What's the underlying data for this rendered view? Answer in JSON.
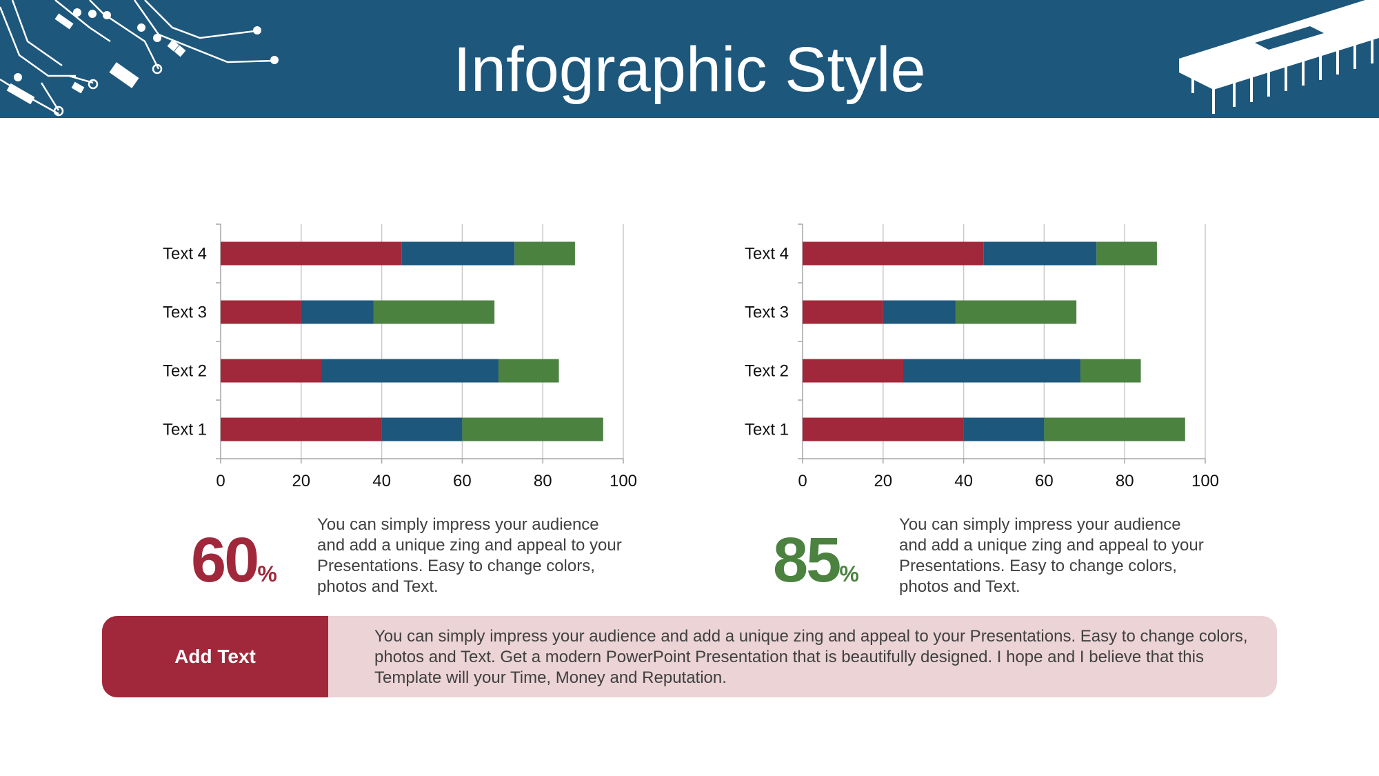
{
  "title": "Infographic Style",
  "colors": {
    "header": "#1e577c",
    "series_red": "#a0283a",
    "series_blue": "#1e577c",
    "series_green": "#4b8240",
    "bar_bg": "#ebd3d6"
  },
  "chart_data": [
    {
      "type": "bar",
      "orientation": "horizontal",
      "stacked": true,
      "categories": [
        "Text 1",
        "Text 2",
        "Text 3",
        "Text 4"
      ],
      "series": [
        {
          "values": [
            40,
            25,
            20,
            45
          ],
          "color": "#a0283a"
        },
        {
          "values": [
            20,
            44,
            18,
            28
          ],
          "color": "#1e577c"
        },
        {
          "values": [
            35,
            15,
            30,
            15
          ],
          "color": "#4b8240"
        }
      ],
      "xlim": [
        0,
        100
      ],
      "xticks": [
        "0",
        "20",
        "40",
        "60",
        "80",
        "100"
      ],
      "grid": true,
      "legend": "none"
    },
    {
      "type": "bar",
      "orientation": "horizontal",
      "stacked": true,
      "categories": [
        "Text 1",
        "Text 2",
        "Text 3",
        "Text 4"
      ],
      "series": [
        {
          "values": [
            40,
            25,
            20,
            45
          ],
          "color": "#a0283a"
        },
        {
          "values": [
            20,
            44,
            18,
            28
          ],
          "color": "#1e577c"
        },
        {
          "values": [
            35,
            15,
            30,
            15
          ],
          "color": "#4b8240"
        }
      ],
      "xlim": [
        0,
        100
      ],
      "xticks": [
        "0",
        "20",
        "40",
        "60",
        "80",
        "100"
      ],
      "grid": true,
      "legend": "none"
    }
  ],
  "stats": [
    {
      "value": "60",
      "unit": "%",
      "color": "#a0283a",
      "text": "You can simply impress your audience and add a unique zing and appeal to your Presentations. Easy to change colors, photos and Text."
    },
    {
      "value": "85",
      "unit": "%",
      "color": "#4b8240",
      "text": "You can simply impress your audience and add a unique zing and appeal to your Presentations. Easy to change colors, photos and Text."
    }
  ],
  "bottom": {
    "label": "Add Text",
    "text": "You can simply impress your audience and add a unique zing and appeal to your Presentations. Easy to change colors, photos and Text. Get a modern PowerPoint  Presentation that is beautifully designed. I hope and I believe that this Template will your Time, Money and Reputation."
  }
}
